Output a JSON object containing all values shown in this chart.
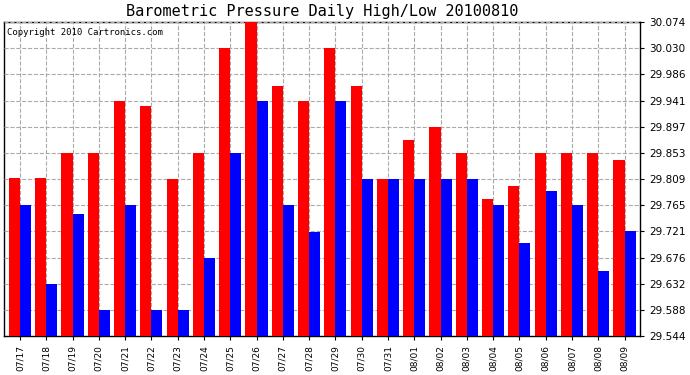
{
  "title": "Barometric Pressure Daily High/Low 20100810",
  "copyright": "Copyright 2010 Cartronics.com",
  "categories": [
    "07/17",
    "07/18",
    "07/19",
    "07/20",
    "07/21",
    "07/22",
    "07/23",
    "07/24",
    "07/25",
    "07/26",
    "07/27",
    "07/28",
    "07/29",
    "07/30",
    "07/31",
    "08/01",
    "08/02",
    "08/03",
    "08/04",
    "08/05",
    "08/06",
    "08/07",
    "08/08",
    "08/09"
  ],
  "highs": [
    29.81,
    29.81,
    29.853,
    29.853,
    29.941,
    29.932,
    29.809,
    29.853,
    30.03,
    30.074,
    29.965,
    29.941,
    30.03,
    29.965,
    29.809,
    29.875,
    29.897,
    29.853,
    29.775,
    29.797,
    29.853,
    29.853,
    29.853,
    29.84
  ],
  "lows": [
    29.765,
    29.632,
    29.75,
    29.588,
    29.765,
    29.588,
    29.588,
    29.676,
    29.853,
    29.941,
    29.765,
    29.72,
    29.94,
    29.809,
    29.809,
    29.809,
    29.809,
    29.809,
    29.765,
    29.7,
    29.788,
    29.765,
    29.654,
    29.721
  ],
  "high_color": "#FF0000",
  "low_color": "#0000FF",
  "background_color": "#FFFFFF",
  "grid_color": "#C0C0C0",
  "ymin": 29.544,
  "ymax": 30.074,
  "yticks": [
    29.544,
    29.588,
    29.632,
    29.676,
    29.721,
    29.765,
    29.809,
    29.853,
    29.897,
    29.941,
    29.986,
    30.03,
    30.074
  ]
}
